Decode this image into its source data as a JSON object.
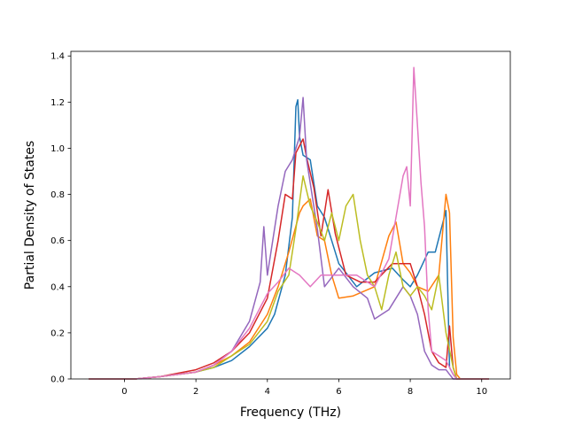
{
  "chart_data": {
    "type": "line",
    "title": "",
    "xlabel": "Frequency (THz)",
    "ylabel": "Partial Density of States",
    "xlim": [
      -1.5,
      10.8
    ],
    "ylim": [
      0.0,
      1.42
    ],
    "xticks": [
      0,
      2,
      4,
      6,
      8,
      10
    ],
    "yticks": [
      0.0,
      0.2,
      0.4,
      0.6,
      0.8,
      1.0,
      1.2,
      1.4
    ],
    "grid": false,
    "legend": "none",
    "series": [
      {
        "color": "#1f77b4",
        "points": [
          [
            -1.0,
            0
          ],
          [
            0.3,
            0
          ],
          [
            1.0,
            0.01
          ],
          [
            2.0,
            0.03
          ],
          [
            2.5,
            0.05
          ],
          [
            3.0,
            0.08
          ],
          [
            3.5,
            0.14
          ],
          [
            4.0,
            0.22
          ],
          [
            4.2,
            0.28
          ],
          [
            4.5,
            0.45
          ],
          [
            4.7,
            0.7
          ],
          [
            4.8,
            1.18
          ],
          [
            4.85,
            1.21
          ],
          [
            4.9,
            1.05
          ],
          [
            5.0,
            0.97
          ],
          [
            5.2,
            0.95
          ],
          [
            5.4,
            0.75
          ],
          [
            5.6,
            0.7
          ],
          [
            5.8,
            0.6
          ],
          [
            6.0,
            0.5
          ],
          [
            6.2,
            0.46
          ],
          [
            6.5,
            0.4
          ],
          [
            7.0,
            0.46
          ],
          [
            7.5,
            0.48
          ],
          [
            7.8,
            0.43
          ],
          [
            8.0,
            0.4
          ],
          [
            8.2,
            0.45
          ],
          [
            8.5,
            0.55
          ],
          [
            8.7,
            0.55
          ],
          [
            9.0,
            0.73
          ],
          [
            9.1,
            0.05
          ],
          [
            9.2,
            0.02
          ],
          [
            9.3,
            0
          ],
          [
            10.2,
            0
          ]
        ]
      },
      {
        "color": "#ff7f0e",
        "points": [
          [
            -1.0,
            0
          ],
          [
            0.3,
            0
          ],
          [
            1.0,
            0.01
          ],
          [
            2.0,
            0.03
          ],
          [
            2.5,
            0.06
          ],
          [
            3.0,
            0.1
          ],
          [
            3.5,
            0.16
          ],
          [
            4.0,
            0.28
          ],
          [
            4.3,
            0.4
          ],
          [
            4.6,
            0.55
          ],
          [
            4.9,
            0.72
          ],
          [
            5.0,
            0.75
          ],
          [
            5.2,
            0.78
          ],
          [
            5.4,
            0.62
          ],
          [
            5.6,
            0.6
          ],
          [
            5.8,
            0.45
          ],
          [
            6.0,
            0.35
          ],
          [
            6.4,
            0.36
          ],
          [
            7.0,
            0.4
          ],
          [
            7.4,
            0.62
          ],
          [
            7.6,
            0.68
          ],
          [
            7.8,
            0.5
          ],
          [
            8.0,
            0.46
          ],
          [
            8.2,
            0.4
          ],
          [
            8.5,
            0.38
          ],
          [
            8.8,
            0.45
          ],
          [
            9.0,
            0.8
          ],
          [
            9.1,
            0.72
          ],
          [
            9.2,
            0.18
          ],
          [
            9.3,
            0.02
          ],
          [
            9.4,
            0
          ],
          [
            10.2,
            0
          ]
        ]
      },
      {
        "color": "#d62728",
        "points": [
          [
            -1.0,
            0
          ],
          [
            0.3,
            0
          ],
          [
            1.0,
            0.01
          ],
          [
            2.0,
            0.04
          ],
          [
            2.5,
            0.07
          ],
          [
            3.0,
            0.12
          ],
          [
            3.5,
            0.2
          ],
          [
            4.0,
            0.35
          ],
          [
            4.3,
            0.6
          ],
          [
            4.5,
            0.8
          ],
          [
            4.7,
            0.78
          ],
          [
            4.8,
            0.98
          ],
          [
            5.0,
            1.04
          ],
          [
            5.1,
            0.96
          ],
          [
            5.3,
            0.83
          ],
          [
            5.5,
            0.62
          ],
          [
            5.7,
            0.82
          ],
          [
            5.9,
            0.63
          ],
          [
            6.2,
            0.45
          ],
          [
            6.6,
            0.42
          ],
          [
            7.0,
            0.42
          ],
          [
            7.5,
            0.5
          ],
          [
            8.0,
            0.5
          ],
          [
            8.2,
            0.4
          ],
          [
            8.4,
            0.28
          ],
          [
            8.6,
            0.12
          ],
          [
            8.8,
            0.07
          ],
          [
            9.0,
            0.05
          ],
          [
            9.1,
            0.23
          ],
          [
            9.2,
            0.05
          ],
          [
            9.3,
            0
          ],
          [
            10.2,
            0
          ]
        ]
      },
      {
        "color": "#9467bd",
        "points": [
          [
            -1.0,
            0
          ],
          [
            0.3,
            0
          ],
          [
            1.0,
            0.01
          ],
          [
            2.0,
            0.03
          ],
          [
            2.5,
            0.06
          ],
          [
            3.0,
            0.12
          ],
          [
            3.5,
            0.25
          ],
          [
            3.8,
            0.42
          ],
          [
            3.9,
            0.66
          ],
          [
            4.0,
            0.45
          ],
          [
            4.3,
            0.75
          ],
          [
            4.5,
            0.9
          ],
          [
            4.7,
            0.95
          ],
          [
            4.9,
            1.05
          ],
          [
            5.0,
            1.22
          ],
          [
            5.1,
            0.95
          ],
          [
            5.4,
            0.65
          ],
          [
            5.6,
            0.4
          ],
          [
            6.0,
            0.48
          ],
          [
            6.4,
            0.4
          ],
          [
            6.8,
            0.35
          ],
          [
            7.0,
            0.26
          ],
          [
            7.4,
            0.3
          ],
          [
            7.8,
            0.4
          ],
          [
            8.0,
            0.36
          ],
          [
            8.2,
            0.28
          ],
          [
            8.4,
            0.12
          ],
          [
            8.6,
            0.06
          ],
          [
            8.8,
            0.04
          ],
          [
            9.0,
            0.04
          ],
          [
            9.1,
            0.02
          ],
          [
            9.2,
            0
          ],
          [
            10.2,
            0
          ]
        ]
      },
      {
        "color": "#bcbd22",
        "points": [
          [
            -1.0,
            0
          ],
          [
            0.3,
            0
          ],
          [
            1.0,
            0.01
          ],
          [
            2.0,
            0.03
          ],
          [
            2.5,
            0.05
          ],
          [
            3.0,
            0.1
          ],
          [
            3.5,
            0.15
          ],
          [
            4.0,
            0.25
          ],
          [
            4.3,
            0.38
          ],
          [
            4.6,
            0.45
          ],
          [
            4.8,
            0.65
          ],
          [
            5.0,
            0.88
          ],
          [
            5.2,
            0.75
          ],
          [
            5.4,
            0.68
          ],
          [
            5.6,
            0.6
          ],
          [
            5.8,
            0.72
          ],
          [
            6.0,
            0.6
          ],
          [
            6.2,
            0.75
          ],
          [
            6.4,
            0.8
          ],
          [
            6.6,
            0.6
          ],
          [
            6.8,
            0.45
          ],
          [
            7.0,
            0.4
          ],
          [
            7.2,
            0.3
          ],
          [
            7.4,
            0.45
          ],
          [
            7.6,
            0.55
          ],
          [
            7.8,
            0.4
          ],
          [
            8.0,
            0.36
          ],
          [
            8.2,
            0.4
          ],
          [
            8.4,
            0.36
          ],
          [
            8.6,
            0.3
          ],
          [
            8.8,
            0.45
          ],
          [
            9.0,
            0.2
          ],
          [
            9.2,
            0.05
          ],
          [
            9.3,
            0
          ],
          [
            10.2,
            0
          ]
        ]
      },
      {
        "color": "#e377c2",
        "points": [
          [
            -1.0,
            0
          ],
          [
            0.3,
            0
          ],
          [
            1.0,
            0.01
          ],
          [
            2.0,
            0.03
          ],
          [
            2.5,
            0.06
          ],
          [
            3.0,
            0.12
          ],
          [
            3.5,
            0.22
          ],
          [
            4.0,
            0.37
          ],
          [
            4.3,
            0.42
          ],
          [
            4.6,
            0.48
          ],
          [
            4.9,
            0.45
          ],
          [
            5.2,
            0.4
          ],
          [
            5.5,
            0.45
          ],
          [
            6.0,
            0.45
          ],
          [
            6.5,
            0.45
          ],
          [
            7.0,
            0.4
          ],
          [
            7.4,
            0.52
          ],
          [
            7.8,
            0.88
          ],
          [
            7.9,
            0.92
          ],
          [
            8.0,
            0.75
          ],
          [
            8.1,
            1.35
          ],
          [
            8.2,
            1.1
          ],
          [
            8.3,
            0.85
          ],
          [
            8.4,
            0.66
          ],
          [
            8.5,
            0.3
          ],
          [
            8.6,
            0.12
          ],
          [
            8.8,
            0.1
          ],
          [
            9.0,
            0.08
          ],
          [
            9.2,
            0.02
          ],
          [
            9.3,
            0
          ],
          [
            10.2,
            0
          ]
        ]
      }
    ]
  }
}
